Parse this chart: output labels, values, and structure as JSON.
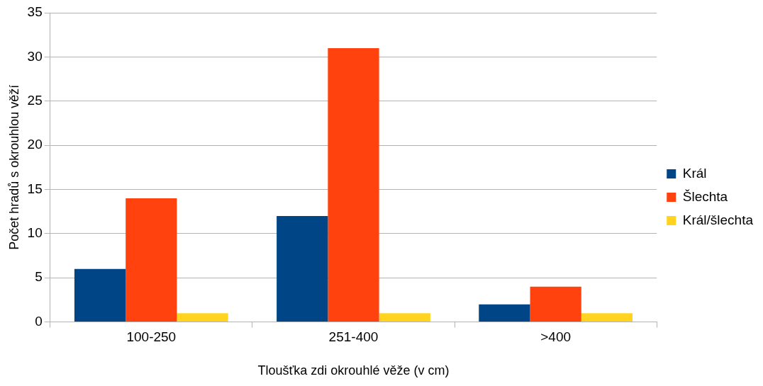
{
  "chart_data": {
    "type": "bar",
    "xlabel": "Tloušťka zdi okrouhlé věže (v cm)",
    "ylabel": "Počet hradů s okrouhlou věží",
    "categories": [
      "100-250",
      "251-400",
      ">400"
    ],
    "series": [
      {
        "name": "Král",
        "color": "#004586",
        "values": [
          6,
          12,
          2
        ]
      },
      {
        "name": "Šlechta",
        "color": "#ff420e",
        "values": [
          14,
          31,
          4
        ]
      },
      {
        "name": "Král/šlechta",
        "color": "#ffd320",
        "values": [
          1,
          1,
          1
        ]
      }
    ],
    "ylim": [
      0,
      35
    ],
    "yticks": [
      0,
      5,
      10,
      15,
      20,
      25,
      30,
      35
    ],
    "grid": "y",
    "legend": "right"
  }
}
